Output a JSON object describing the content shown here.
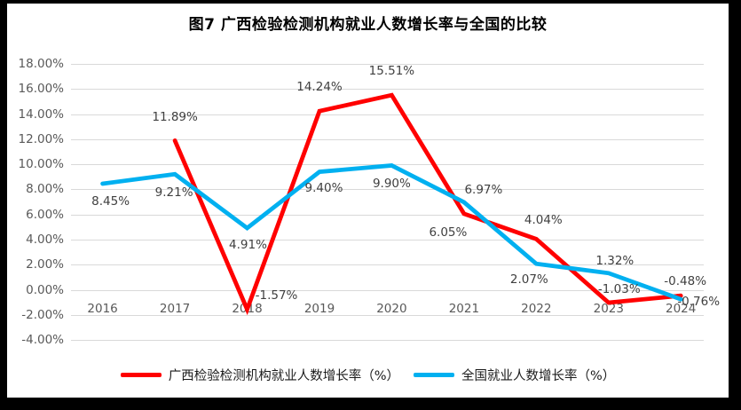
{
  "title": "图7 广西检验检测机构就业人数增长率与全国的比较",
  "chart_data": {
    "type": "line",
    "title": "图7 广西检验检测机构就业人数增长率与全国的比较",
    "categories": [
      "2016",
      "2017",
      "2018",
      "2019",
      "2020",
      "2021",
      "2022",
      "2023",
      "2024"
    ],
    "series": [
      {
        "name": "广西检验检测机构就业人数增长率（%）",
        "color": "#ff0000",
        "values": [
          null,
          11.89,
          -1.57,
          14.24,
          15.51,
          6.05,
          4.04,
          -1.03,
          -0.48
        ],
        "labels": [
          "",
          "11.89%",
          "-1.57%",
          "14.24%",
          "15.51%",
          "6.05%",
          "4.04%",
          "-1.03%",
          "-0.48%"
        ]
      },
      {
        "name": "全国就业人数增长率（%）",
        "color": "#00b0f0",
        "values": [
          8.45,
          9.21,
          4.91,
          9.4,
          9.9,
          6.97,
          2.07,
          1.32,
          -0.76
        ],
        "labels": [
          "8.45%",
          "9.21%",
          "4.91%",
          "9.40%",
          "9.90%",
          "6.97%",
          "2.07%",
          "1.32%",
          "-0.76%"
        ]
      }
    ],
    "ylim": [
      -4,
      18
    ],
    "ytick_step": 2,
    "y_tick_labels": [
      "18.00%",
      "16.00%",
      "14.00%",
      "12.00%",
      "10.00%",
      "8.00%",
      "6.00%",
      "4.00%",
      "2.00%",
      "0.00%",
      "-2.00%",
      "-4.00%"
    ],
    "grid": true,
    "gridline_color": "#d9d9d9",
    "axis_text_color": "#595959",
    "data_label_color": "#3f3f3f",
    "legend_position": "bottom"
  }
}
